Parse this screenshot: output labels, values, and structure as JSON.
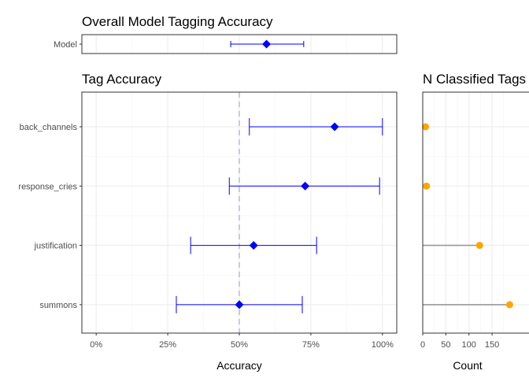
{
  "chart_data": [
    {
      "type": "scatter",
      "title": "Overall Model Tagging Accuracy",
      "xlabel": "",
      "ylabel": "",
      "xlim": [
        -0.05,
        1.05
      ],
      "categories": [
        "Model"
      ],
      "points": [
        {
          "label": "Model",
          "value": 0.595,
          "low": 0.47,
          "high": 0.725
        }
      ],
      "marker": "diamond",
      "color": "#0000ff",
      "grid": true
    },
    {
      "type": "scatter",
      "title": "Tag Accuracy",
      "xlabel": "Accuracy",
      "ylabel": "",
      "xlim": [
        -0.05,
        1.05
      ],
      "xticks": [
        0,
        0.25,
        0.5,
        0.75,
        1.0
      ],
      "xtick_labels": [
        "0%",
        "25%",
        "50%",
        "75%",
        "100%"
      ],
      "categories": [
        "back_channels",
        "response_cries",
        "justification",
        "summons"
      ],
      "points": [
        {
          "label": "back_channels",
          "value": 0.833,
          "low": 0.535,
          "high": 1.0
        },
        {
          "label": "response_cries",
          "value": 0.73,
          "low": 0.465,
          "high": 0.99
        },
        {
          "label": "justification",
          "value": 0.55,
          "low": 0.33,
          "high": 0.77
        },
        {
          "label": "summons",
          "value": 0.5,
          "low": 0.28,
          "high": 0.72
        }
      ],
      "reference_line": {
        "value": 0.5,
        "style": "dashed",
        "color": "#c8c8f0"
      },
      "marker": "diamond",
      "color": "#0000ff",
      "grid": true
    },
    {
      "type": "lollipop",
      "title": "N Classified Tags",
      "xlabel": "Count",
      "ylabel": "",
      "xlim": [
        0,
        190
      ],
      "xticks": [
        0,
        50,
        100,
        150
      ],
      "xtick_labels": [
        "0",
        "50",
        "100",
        "150"
      ],
      "categories": [
        "back_channels",
        "response_cries",
        "justification",
        "summons"
      ],
      "values": [
        6,
        8,
        123,
        188
      ],
      "point_color": "#ffa500",
      "stem_color": "#999999",
      "grid": true
    }
  ]
}
